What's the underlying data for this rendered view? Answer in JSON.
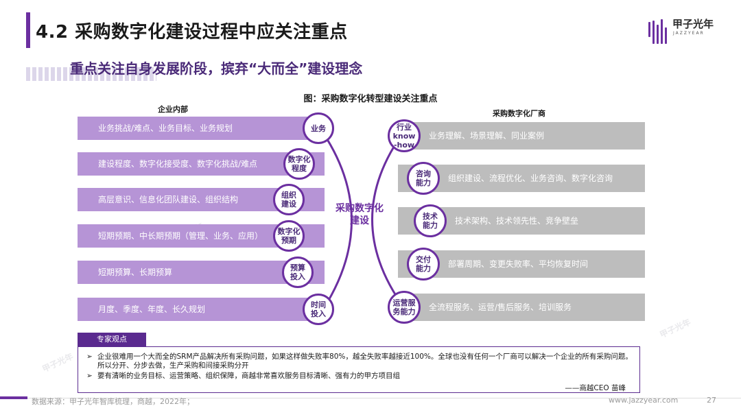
{
  "header": {
    "title": "4.2 采购数字化建设过程中应关注重点",
    "subtitle": "重点关注自身发展阶段，摈弃“大而全”建设理念",
    "logo_text": "甲子光年",
    "logo_sub": "JAZZYEAR",
    "accent_color": "#6b2fa0"
  },
  "diagram": {
    "title": "图：采购数字化转型建设关注重点",
    "left_label": "企业内部",
    "right_label": "采购数字化厂商",
    "center_label": "采购数字化\n建设",
    "left_items": [
      {
        "circle": "业务",
        "text": "业务挑战/难点、业务目标、业务规划"
      },
      {
        "circle": "数字化\n程度",
        "text": "建设程度、数字化接受度、数字化挑战/难点"
      },
      {
        "circle": "组织\n建设",
        "text": "高层意识、信息化团队建设、组织结构"
      },
      {
        "circle": "数字化\n预期",
        "text": "短期预期、中长期预期（管理、业务、应用）"
      },
      {
        "circle": "预算\n投入",
        "text": "短期预算、长期预算"
      },
      {
        "circle": "时间\n投入",
        "text": "月度、季度、年度、长久规划"
      }
    ],
    "right_items": [
      {
        "circle": "行业\nknow\n-how",
        "text": "业务理解、场景理解、同业案例"
      },
      {
        "circle": "咨询\n能力",
        "text": "组织建设、流程优化、业务咨询、数字化咨询"
      },
      {
        "circle": "技术\n能力",
        "text": "技术架构、技术领先性、竞争壁垒"
      },
      {
        "circle": "交付\n能力",
        "text": "部署周期、变更失败率、平均恢复时间"
      },
      {
        "circle": "运营服\n务能力",
        "text": "全流程服务、运营/售后服务、培训服务"
      }
    ],
    "left_bar_color": "#b694d6",
    "right_bar_color": "#bdbdbd"
  },
  "expert": {
    "tab": "专家观点",
    "bullets": [
      "企业很难用一个大而全的SRM产品解决所有采购问题，如果这样做失败率80%，越全失败率越接近100%。全球也没有任何一个厂商可以解决一个企业的所有采购问题。所以分开、分步去做，生产采购和间接采购分开",
      "要有清晰的业务目标、运营策略、组织保障，商越非常喜欢服务目标清晰、强有力的甲方项目组"
    ],
    "marker": "➢",
    "signature": "——商越CEO 苗峰"
  },
  "footer": {
    "source": "数据来源：甲子光年智库梳理，商越，2022年；",
    "url": "www.jazzyear.com",
    "page": "27"
  }
}
